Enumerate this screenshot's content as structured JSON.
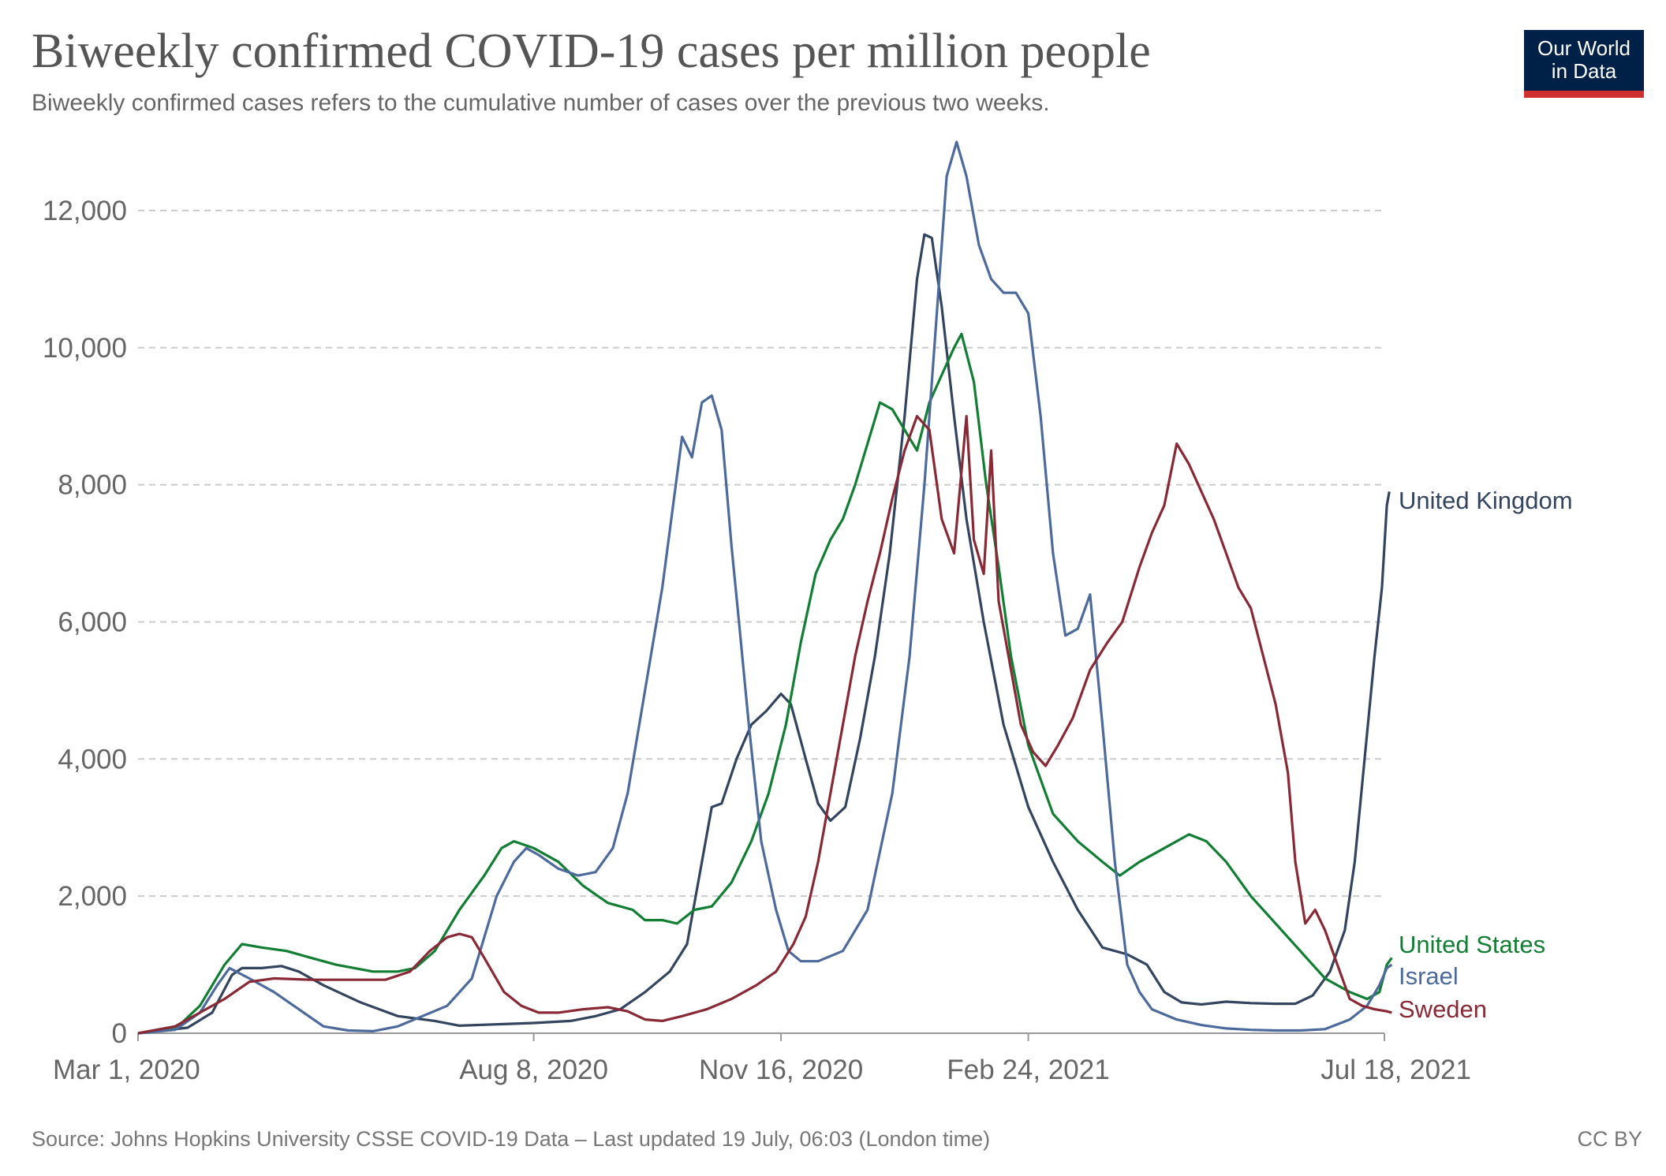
{
  "header": {
    "title": "Biweekly confirmed COVID-19 cases per million people",
    "subtitle": "Biweekly confirmed cases refers to the cumulative number of cases over the previous two weeks."
  },
  "logo": {
    "line1": "Our World",
    "line2": "in Data",
    "bg_color": "#002147",
    "accent_color": "#d03030"
  },
  "footer": {
    "source": "Source: Johns Hopkins University CSSE COVID-19 Data – Last updated 19 July, 06:03 (London time)",
    "license": "CC BY"
  },
  "chart_data": {
    "type": "line",
    "title": "Biweekly confirmed COVID-19 cases per million people",
    "xlabel": "",
    "ylabel": "",
    "ylim": [
      0,
      13000
    ],
    "x_unit": "days since Mar 1, 2020",
    "xlim": [
      0,
      504
    ],
    "y_ticks": [
      {
        "value": 0,
        "label": "0"
      },
      {
        "value": 2000,
        "label": "2,000"
      },
      {
        "value": 4000,
        "label": "4,000"
      },
      {
        "value": 6000,
        "label": "6,000"
      },
      {
        "value": 8000,
        "label": "8,000"
      },
      {
        "value": 10000,
        "label": "10,000"
      },
      {
        "value": 12000,
        "label": "12,000"
      }
    ],
    "x_ticks": [
      {
        "day": 0,
        "label": "Mar 1, 2020"
      },
      {
        "day": 160,
        "label": "Aug 8, 2020"
      },
      {
        "day": 260,
        "label": "Nov 16, 2020"
      },
      {
        "day": 360,
        "label": "Feb 24, 2021"
      },
      {
        "day": 504,
        "label": "Jul 18, 2021"
      }
    ],
    "grid": true,
    "series": [
      {
        "name": "United Kingdom",
        "label": "United Kingdom",
        "color": "#33445e",
        "points": [
          [
            0,
            0
          ],
          [
            20,
            80
          ],
          [
            30,
            300
          ],
          [
            38,
            850
          ],
          [
            42,
            950
          ],
          [
            50,
            950
          ],
          [
            58,
            980
          ],
          [
            65,
            900
          ],
          [
            75,
            700
          ],
          [
            90,
            450
          ],
          [
            105,
            250
          ],
          [
            120,
            180
          ],
          [
            130,
            110
          ],
          [
            145,
            130
          ],
          [
            160,
            150
          ],
          [
            175,
            180
          ],
          [
            185,
            250
          ],
          [
            195,
            350
          ],
          [
            205,
            600
          ],
          [
            215,
            900
          ],
          [
            222,
            1300
          ],
          [
            228,
            2500
          ],
          [
            232,
            3300
          ],
          [
            236,
            3350
          ],
          [
            242,
            4000
          ],
          [
            248,
            4500
          ],
          [
            254,
            4700
          ],
          [
            260,
            4950
          ],
          [
            264,
            4800
          ],
          [
            270,
            4000
          ],
          [
            275,
            3350
          ],
          [
            280,
            3100
          ],
          [
            286,
            3300
          ],
          [
            292,
            4300
          ],
          [
            298,
            5500
          ],
          [
            304,
            7000
          ],
          [
            310,
            9000
          ],
          [
            315,
            11000
          ],
          [
            318,
            11650
          ],
          [
            321,
            11600
          ],
          [
            325,
            10600
          ],
          [
            330,
            9000
          ],
          [
            335,
            7500
          ],
          [
            342,
            6000
          ],
          [
            350,
            4500
          ],
          [
            360,
            3300
          ],
          [
            370,
            2500
          ],
          [
            380,
            1800
          ],
          [
            390,
            1250
          ],
          [
            400,
            1150
          ],
          [
            408,
            1000
          ],
          [
            415,
            600
          ],
          [
            422,
            450
          ],
          [
            430,
            420
          ],
          [
            440,
            460
          ],
          [
            450,
            440
          ],
          [
            460,
            430
          ],
          [
            468,
            430
          ],
          [
            475,
            550
          ],
          [
            482,
            900
          ],
          [
            488,
            1500
          ],
          [
            492,
            2500
          ],
          [
            496,
            4000
          ],
          [
            500,
            5500
          ],
          [
            503,
            6500
          ],
          [
            505,
            7700
          ],
          [
            506,
            7900
          ]
        ]
      },
      {
        "name": "United States",
        "label": "United States",
        "color": "#127e33",
        "points": [
          [
            0,
            0
          ],
          [
            15,
            60
          ],
          [
            25,
            400
          ],
          [
            35,
            1000
          ],
          [
            42,
            1300
          ],
          [
            50,
            1250
          ],
          [
            60,
            1200
          ],
          [
            70,
            1100
          ],
          [
            80,
            1000
          ],
          [
            95,
            900
          ],
          [
            105,
            900
          ],
          [
            112,
            950
          ],
          [
            120,
            1200
          ],
          [
            130,
            1800
          ],
          [
            140,
            2300
          ],
          [
            147,
            2700
          ],
          [
            152,
            2800
          ],
          [
            160,
            2700
          ],
          [
            170,
            2500
          ],
          [
            180,
            2150
          ],
          [
            190,
            1900
          ],
          [
            200,
            1800
          ],
          [
            205,
            1650
          ],
          [
            212,
            1650
          ],
          [
            218,
            1600
          ],
          [
            225,
            1800
          ],
          [
            232,
            1850
          ],
          [
            240,
            2200
          ],
          [
            248,
            2800
          ],
          [
            255,
            3500
          ],
          [
            262,
            4500
          ],
          [
            268,
            5700
          ],
          [
            274,
            6700
          ],
          [
            280,
            7200
          ],
          [
            285,
            7500
          ],
          [
            290,
            8000
          ],
          [
            295,
            8600
          ],
          [
            300,
            9200
          ],
          [
            305,
            9100
          ],
          [
            310,
            8800
          ],
          [
            315,
            8500
          ],
          [
            320,
            9200
          ],
          [
            325,
            9600
          ],
          [
            330,
            10000
          ],
          [
            333,
            10200
          ],
          [
            338,
            9500
          ],
          [
            343,
            8000
          ],
          [
            348,
            6800
          ],
          [
            353,
            5500
          ],
          [
            360,
            4200
          ],
          [
            370,
            3200
          ],
          [
            380,
            2800
          ],
          [
            390,
            2500
          ],
          [
            397,
            2300
          ],
          [
            405,
            2500
          ],
          [
            415,
            2700
          ],
          [
            425,
            2900
          ],
          [
            432,
            2800
          ],
          [
            440,
            2500
          ],
          [
            450,
            2000
          ],
          [
            460,
            1600
          ],
          [
            470,
            1200
          ],
          [
            480,
            800
          ],
          [
            490,
            600
          ],
          [
            497,
            500
          ],
          [
            502,
            600
          ],
          [
            505,
            1000
          ],
          [
            507,
            1100
          ]
        ]
      },
      {
        "name": "Israel",
        "label": "Israel",
        "color": "#4c6a9c",
        "points": [
          [
            0,
            0
          ],
          [
            15,
            50
          ],
          [
            25,
            300
          ],
          [
            32,
            700
          ],
          [
            37,
            950
          ],
          [
            45,
            800
          ],
          [
            55,
            600
          ],
          [
            65,
            350
          ],
          [
            75,
            100
          ],
          [
            85,
            40
          ],
          [
            95,
            30
          ],
          [
            105,
            100
          ],
          [
            115,
            250
          ],
          [
            125,
            400
          ],
          [
            135,
            800
          ],
          [
            145,
            2000
          ],
          [
            152,
            2500
          ],
          [
            157,
            2700
          ],
          [
            162,
            2600
          ],
          [
            170,
            2400
          ],
          [
            178,
            2300
          ],
          [
            185,
            2350
          ],
          [
            192,
            2700
          ],
          [
            198,
            3500
          ],
          [
            205,
            5000
          ],
          [
            212,
            6500
          ],
          [
            220,
            8700
          ],
          [
            224,
            8400
          ],
          [
            228,
            9200
          ],
          [
            232,
            9300
          ],
          [
            236,
            8800
          ],
          [
            240,
            7100
          ],
          [
            243,
            6000
          ],
          [
            247,
            4500
          ],
          [
            252,
            2800
          ],
          [
            258,
            1800
          ],
          [
            263,
            1200
          ],
          [
            268,
            1050
          ],
          [
            275,
            1050
          ],
          [
            285,
            1200
          ],
          [
            295,
            1800
          ],
          [
            305,
            3500
          ],
          [
            312,
            5500
          ],
          [
            318,
            8000
          ],
          [
            323,
            10500
          ],
          [
            327,
            12500
          ],
          [
            331,
            13000
          ],
          [
            335,
            12500
          ],
          [
            340,
            11500
          ],
          [
            345,
            11000
          ],
          [
            350,
            10800
          ],
          [
            355,
            10800
          ],
          [
            360,
            10500
          ],
          [
            365,
            9000
          ],
          [
            370,
            7000
          ],
          [
            375,
            5800
          ],
          [
            380,
            5900
          ],
          [
            385,
            6400
          ],
          [
            390,
            4500
          ],
          [
            395,
            2500
          ],
          [
            400,
            1000
          ],
          [
            405,
            600
          ],
          [
            410,
            350
          ],
          [
            420,
            200
          ],
          [
            430,
            120
          ],
          [
            440,
            70
          ],
          [
            450,
            50
          ],
          [
            460,
            40
          ],
          [
            470,
            40
          ],
          [
            480,
            60
          ],
          [
            490,
            200
          ],
          [
            497,
            400
          ],
          [
            502,
            700
          ],
          [
            505,
            950
          ],
          [
            507,
            1000
          ]
        ]
      },
      {
        "name": "Sweden",
        "label": "Sweden",
        "color": "#892935",
        "points": [
          [
            0,
            0
          ],
          [
            15,
            100
          ],
          [
            25,
            300
          ],
          [
            35,
            500
          ],
          [
            45,
            750
          ],
          [
            55,
            800
          ],
          [
            70,
            780
          ],
          [
            90,
            780
          ],
          [
            100,
            780
          ],
          [
            110,
            900
          ],
          [
            118,
            1200
          ],
          [
            125,
            1400
          ],
          [
            130,
            1450
          ],
          [
            135,
            1400
          ],
          [
            140,
            1100
          ],
          [
            148,
            600
          ],
          [
            155,
            400
          ],
          [
            162,
            300
          ],
          [
            170,
            300
          ],
          [
            180,
            350
          ],
          [
            190,
            380
          ],
          [
            198,
            320
          ],
          [
            205,
            200
          ],
          [
            212,
            180
          ],
          [
            220,
            250
          ],
          [
            230,
            350
          ],
          [
            240,
            500
          ],
          [
            250,
            700
          ],
          [
            258,
            900
          ],
          [
            265,
            1300
          ],
          [
            270,
            1700
          ],
          [
            275,
            2500
          ],
          [
            280,
            3500
          ],
          [
            285,
            4500
          ],
          [
            290,
            5500
          ],
          [
            295,
            6300
          ],
          [
            300,
            7000
          ],
          [
            305,
            7800
          ],
          [
            310,
            8500
          ],
          [
            315,
            9000
          ],
          [
            320,
            8800
          ],
          [
            325,
            7500
          ],
          [
            330,
            7000
          ],
          [
            335,
            9000
          ],
          [
            338,
            7200
          ],
          [
            342,
            6700
          ],
          [
            345,
            8500
          ],
          [
            348,
            6300
          ],
          [
            352,
            5500
          ],
          [
            357,
            4500
          ],
          [
            362,
            4100
          ],
          [
            367,
            3900
          ],
          [
            372,
            4200
          ],
          [
            378,
            4600
          ],
          [
            385,
            5300
          ],
          [
            392,
            5700
          ],
          [
            398,
            6000
          ],
          [
            405,
            6800
          ],
          [
            410,
            7300
          ],
          [
            415,
            7700
          ],
          [
            420,
            8600
          ],
          [
            425,
            8300
          ],
          [
            430,
            7900
          ],
          [
            435,
            7500
          ],
          [
            440,
            7000
          ],
          [
            445,
            6500
          ],
          [
            450,
            6200
          ],
          [
            455,
            5500
          ],
          [
            460,
            4800
          ],
          [
            465,
            3800
          ],
          [
            468,
            2500
          ],
          [
            472,
            1600
          ],
          [
            476,
            1800
          ],
          [
            480,
            1500
          ],
          [
            485,
            1000
          ],
          [
            490,
            500
          ],
          [
            495,
            400
          ],
          [
            500,
            350
          ],
          [
            505,
            320
          ],
          [
            507,
            300
          ]
        ]
      }
    ]
  }
}
